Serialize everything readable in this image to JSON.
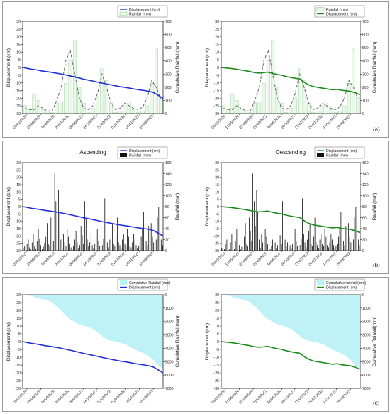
{
  "panel_labels": [
    "(a)",
    "(b)",
    "(c)"
  ],
  "chart_data": [
    {
      "id": "a-asc",
      "type": "bar+line",
      "ylabel": "Displacement (cm)",
      "y2label": "Cumulative Rainfall (mm)",
      "ylim": [
        -30,
        30
      ],
      "y2lim": [
        0,
        700
      ],
      "yticks": [
        -30,
        -25,
        -20,
        -15,
        -10,
        -5,
        0,
        5,
        10,
        15,
        20,
        25,
        30
      ],
      "y2ticks": [
        0,
        100,
        200,
        300,
        400,
        500,
        600,
        700
      ],
      "xticks": [
        "03/01/2020",
        "12/05/2020",
        "19/09/2020",
        "27/01/2021",
        "06/06/2021",
        "14/10/2021",
        "21/02/2022",
        "01/07/2022",
        "08/11/2022",
        "18/03/2023"
      ],
      "legend": [
        "Displacement (cm)",
        "Rainfall (mm)"
      ],
      "line_color": "#1f2fd6",
      "displacement": [
        0,
        -0.6,
        -1.2,
        -1.6,
        -2.2,
        -2.7,
        -3.1,
        -3.6,
        -4.1,
        -4.8,
        -5.4,
        -6.1,
        -6.8,
        -7.6,
        -8.2,
        -8.8,
        -9.5,
        -10.2,
        -10.8,
        -11.4,
        -12.0,
        -12.6,
        -13.0,
        -13.5,
        -14.1,
        -14.6,
        -15.0,
        -15.5,
        -16.4,
        -18.2,
        -20.1
      ],
      "monthly_rainfall": [
        60,
        30,
        150,
        100,
        30,
        20,
        10,
        80,
        90,
        230,
        400,
        550,
        200,
        80,
        10,
        40,
        120,
        340,
        250,
        80,
        10,
        20,
        60,
        90,
        30,
        10,
        20,
        60,
        230,
        490,
        120
      ],
      "smooth_rainfall": [
        40,
        30,
        30,
        60,
        40,
        20,
        20,
        100,
        200,
        400,
        480,
        300,
        120,
        40,
        30,
        60,
        150,
        300,
        200,
        80,
        30,
        40,
        80,
        60,
        40,
        30,
        50,
        120,
        250,
        200,
        110
      ]
    },
    {
      "id": "a-desc",
      "type": "bar+line",
      "ylabel": "Displacement (cm)",
      "y2label": "Cumulative Rainfall (mm)",
      "ylim": [
        -30,
        30
      ],
      "y2lim": [
        0,
        700
      ],
      "yticks": [
        -30,
        -25,
        -20,
        -15,
        -10,
        -5,
        0,
        5,
        10,
        15,
        20,
        25,
        30
      ],
      "y2ticks": [
        0,
        100,
        200,
        300,
        400,
        500,
        600,
        700
      ],
      "xticks": [
        "09/01/2020",
        "18/05/2020",
        "25/09/2020",
        "02/02/2021",
        "12/06/2021",
        "20/10/2021",
        "27/02/2022",
        "07/07/2022",
        "14/11/2022",
        "24/03/2023"
      ],
      "legend": [
        "Rainfall (mm)",
        "Displacement (cm)"
      ],
      "line_color": "#1c8a1c",
      "displacement": [
        0,
        -0.3,
        -0.6,
        -1.0,
        -1.5,
        -2.0,
        -2.5,
        -3.2,
        -3.6,
        -3.4,
        -3.0,
        -3.8,
        -4.5,
        -5.0,
        -5.8,
        -6.5,
        -7.0,
        -7.5,
        -9.8,
        -11.5,
        -12.5,
        -13.0,
        -13.5,
        -14.0,
        -14.5,
        -14.2,
        -14.8,
        -15.2,
        -15.6,
        -16.5,
        -17.8
      ],
      "monthly_rainfall": [
        60,
        30,
        150,
        100,
        30,
        20,
        10,
        80,
        90,
        230,
        400,
        550,
        200,
        80,
        10,
        40,
        120,
        340,
        250,
        80,
        10,
        20,
        60,
        90,
        30,
        10,
        20,
        60,
        230,
        490,
        120
      ],
      "smooth_rainfall": [
        40,
        30,
        30,
        60,
        40,
        20,
        20,
        100,
        200,
        400,
        480,
        300,
        120,
        40,
        30,
        60,
        150,
        300,
        200,
        80,
        30,
        40,
        80,
        60,
        40,
        30,
        50,
        120,
        250,
        200,
        110
      ]
    },
    {
      "id": "b-asc",
      "type": "bar+line",
      "title": "Ascending",
      "ylabel": "Displacement (cm)",
      "y2label": "Rainfall (mm)",
      "ylim": [
        -30,
        30
      ],
      "y2lim": [
        0,
        160
      ],
      "yticks": [
        -30,
        -25,
        -20,
        -15,
        -10,
        -5,
        0,
        5,
        10,
        15,
        20,
        25,
        30
      ],
      "y2ticks": [
        0,
        20,
        40,
        60,
        80,
        100,
        120,
        140,
        160
      ],
      "xticks": [
        "03/01/2020",
        "12/05/2020",
        "19/09/2020",
        "27/01/2021",
        "06/06/2021",
        "14/10/2021",
        "21/02/2022",
        "01/07/2022",
        "08/11/2022",
        "18/03/2023"
      ],
      "legend": [
        "Displacement (cm)",
        "Rainfall (mm)"
      ],
      "line_color": "#1f2fd6",
      "displacement": [
        0,
        -0.6,
        -1.2,
        -1.6,
        -2.2,
        -2.7,
        -3.1,
        -3.6,
        -4.1,
        -4.8,
        -5.4,
        -6.1,
        -6.8,
        -7.6,
        -8.2,
        -8.8,
        -9.5,
        -10.2,
        -10.8,
        -11.4,
        -12.0,
        -12.6,
        -13.0,
        -13.5,
        -14.1,
        -14.6,
        -15.0,
        -15.5,
        -16.4,
        -18.2,
        -20.1
      ],
      "daily_rainfall": [
        5,
        8,
        3,
        12,
        20,
        6,
        2,
        15,
        30,
        9,
        4,
        18,
        40,
        22,
        10,
        3,
        7,
        14,
        25,
        50,
        12,
        8,
        60,
        35,
        18,
        140,
        90,
        45,
        110,
        70,
        20,
        5,
        30,
        15,
        8,
        40,
        25,
        12,
        6,
        3,
        9,
        20,
        35,
        15,
        5,
        10,
        45,
        28,
        12,
        90,
        60,
        20,
        8,
        15,
        30,
        10,
        5,
        12,
        25,
        40,
        18,
        8,
        3,
        10,
        22,
        95,
        30,
        15,
        6,
        20,
        35,
        50,
        12,
        8,
        25,
        60,
        15,
        10,
        5,
        20,
        30,
        12,
        8,
        40,
        25,
        10,
        6,
        15,
        30,
        20,
        10,
        5,
        8,
        12,
        25,
        40,
        70,
        35,
        18,
        10,
        45,
        115,
        50,
        25,
        15,
        30,
        20,
        60,
        80,
        40,
        20,
        10
      ]
    },
    {
      "id": "b-desc",
      "type": "bar+line",
      "title": "Descending",
      "ylabel": "Displacement (cm)",
      "y2label": "Rainfall (mm)",
      "ylim": [
        -30,
        30
      ],
      "y2lim": [
        0,
        160
      ],
      "yticks": [
        -30,
        -25,
        -20,
        -15,
        -10,
        -5,
        0,
        5,
        10,
        15,
        20,
        25,
        30
      ],
      "y2ticks": [
        0,
        20,
        40,
        60,
        80,
        100,
        120,
        140,
        160
      ],
      "xticks": [
        "09/01/2020",
        "18/05/2020",
        "25/09/2020",
        "02/02/2021",
        "12/06/2021",
        "20/10/2021",
        "27/02/2022",
        "07/07/2022",
        "14/11/2022",
        "24/03/2023"
      ],
      "legend": [
        "Displacement (cm)",
        "Rainfall (mm)"
      ],
      "line_color": "#1c8a1c",
      "displacement": [
        0,
        -0.3,
        -0.6,
        -1.0,
        -1.5,
        -2.0,
        -2.5,
        -3.2,
        -3.6,
        -3.4,
        -3.0,
        -3.8,
        -4.5,
        -5.0,
        -5.8,
        -6.5,
        -7.0,
        -7.5,
        -9.8,
        -11.5,
        -12.5,
        -13.0,
        -13.5,
        -14.0,
        -14.5,
        -14.2,
        -14.8,
        -15.2,
        -15.6,
        -16.5,
        -17.8
      ],
      "daily_rainfall": [
        5,
        8,
        3,
        12,
        20,
        6,
        2,
        15,
        30,
        9,
        4,
        18,
        40,
        22,
        10,
        3,
        7,
        14,
        25,
        50,
        12,
        8,
        60,
        35,
        18,
        140,
        90,
        45,
        110,
        70,
        20,
        5,
        30,
        15,
        8,
        40,
        25,
        12,
        6,
        3,
        9,
        20,
        35,
        15,
        5,
        10,
        45,
        28,
        12,
        90,
        60,
        20,
        8,
        15,
        30,
        10,
        5,
        12,
        25,
        40,
        18,
        8,
        3,
        10,
        22,
        95,
        30,
        15,
        6,
        20,
        35,
        50,
        12,
        8,
        25,
        60,
        15,
        10,
        5,
        20,
        30,
        12,
        8,
        40,
        25,
        10,
        6,
        15,
        30,
        20,
        10,
        5,
        8,
        12,
        25,
        40,
        70,
        35,
        18,
        10,
        45,
        115,
        50,
        25,
        15,
        30,
        20,
        60,
        80,
        40,
        20,
        10
      ]
    },
    {
      "id": "c-asc",
      "type": "area+line",
      "ylabel": "Displacement (cm)",
      "y2label": "Cumulative Rainfall (mm)",
      "ylim": [
        -30,
        30
      ],
      "y2lim": [
        7000,
        0
      ],
      "y2_inverted": true,
      "yticks": [
        -30,
        -25,
        -20,
        -15,
        -10,
        -5,
        0,
        5,
        10,
        15,
        20,
        25,
        30
      ],
      "y2ticks": [
        0,
        1000,
        2000,
        3000,
        4000,
        5000,
        6000,
        7000
      ],
      "xticks": [
        "03/01/2020",
        "12/05/2020",
        "19/09/2020",
        "27/01/2021",
        "06/06/2021",
        "14/10/2021",
        "21/02/2022",
        "01/07/2022",
        "08/11/2022",
        "18/03/2023"
      ],
      "legend": [
        "Cumulative Rainfall (mm)",
        "Displacement (cm)"
      ],
      "line_color": "#1f2fd6",
      "area_color": "#bff2f7",
      "displacement": [
        0,
        -0.6,
        -1.2,
        -1.6,
        -2.2,
        -2.7,
        -3.1,
        -3.6,
        -4.1,
        -4.8,
        -5.4,
        -6.1,
        -6.8,
        -7.6,
        -8.2,
        -8.8,
        -9.5,
        -10.2,
        -10.8,
        -11.4,
        -12.0,
        -12.6,
        -13.0,
        -13.5,
        -14.1,
        -14.6,
        -15.0,
        -15.5,
        -16.4,
        -18.2,
        -20.1
      ],
      "cumulative_rainfall": [
        0,
        60,
        100,
        250,
        300,
        400,
        500,
        800,
        1100,
        1500,
        1800,
        2000,
        2200,
        2300,
        2400,
        2550,
        2800,
        3100,
        3350,
        3450,
        3500,
        3600,
        3700,
        3900,
        4100,
        4250,
        4400,
        4600,
        4900,
        5300,
        5500
      ]
    },
    {
      "id": "c-desc",
      "type": "area+line",
      "ylabel": "Displacement(cm)",
      "y2label": "Cumulative Rainfall(mm)",
      "ylim": [
        -30,
        30
      ],
      "y2lim": [
        7000,
        0
      ],
      "y2_inverted": true,
      "yticks": [
        -30,
        -25,
        -20,
        -15,
        -10,
        -5,
        0,
        5,
        10,
        15,
        20,
        25,
        30
      ],
      "y2ticks": [
        0,
        1000,
        2000,
        3000,
        4000,
        5000,
        6000,
        7000
      ],
      "xticks": [
        "09/01/2020",
        "18/05/2020",
        "25/09/2020",
        "02/02/2021",
        "12/06/2021",
        "20/10/2021",
        "27/02/2022",
        "07/07/2022",
        "14/11/2022",
        "24/03/2023"
      ],
      "legend": [
        "Cumulative rainfall (mm)",
        "Displacement (cm)"
      ],
      "line_color": "#1c8a1c",
      "area_color": "#bff2f7",
      "displacement": [
        0,
        -0.3,
        -0.6,
        -1.0,
        -1.5,
        -2.0,
        -2.5,
        -3.2,
        -3.6,
        -3.4,
        -3.0,
        -3.8,
        -4.5,
        -5.0,
        -5.8,
        -6.5,
        -7.0,
        -7.5,
        -9.8,
        -11.5,
        -12.5,
        -13.0,
        -13.5,
        -14.0,
        -14.5,
        -14.2,
        -14.8,
        -15.2,
        -15.6,
        -16.5,
        -17.8
      ],
      "cumulative_rainfall": [
        0,
        60,
        100,
        250,
        300,
        400,
        500,
        800,
        1100,
        1500,
        1800,
        2000,
        2200,
        2300,
        2400,
        2550,
        2800,
        3100,
        3350,
        3450,
        3500,
        3600,
        3700,
        3900,
        4100,
        4250,
        4400,
        4600,
        4900,
        5300,
        5500
      ]
    }
  ]
}
